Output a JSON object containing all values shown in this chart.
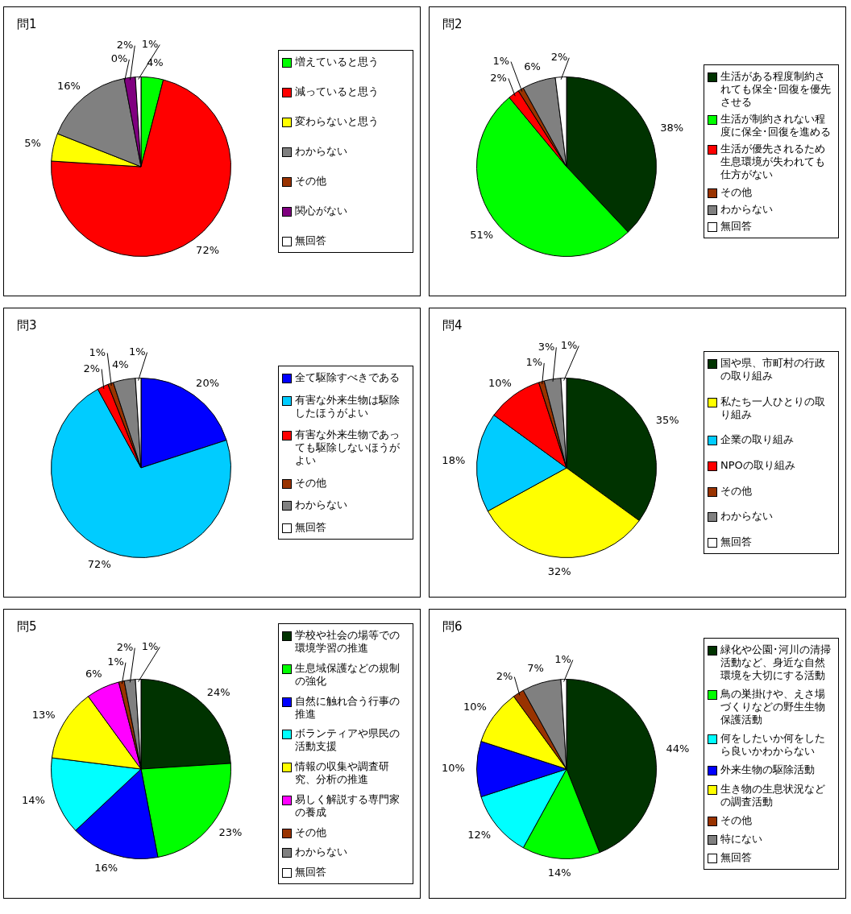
{
  "chart_data": [
    {
      "type": "pie",
      "title": "問1",
      "legend": "right",
      "categories": [
        "増えていると思う",
        "減っていると思う",
        "変わらないと思う",
        "わからない",
        "その他",
        "関心がない",
        "無回答"
      ],
      "values": [
        4,
        72,
        5,
        16,
        0,
        2,
        1
      ],
      "value_labels": [
        "4%",
        "72%",
        "5%",
        "16%",
        "0%",
        "2%",
        "1%"
      ],
      "colors": [
        "#00ff00",
        "#ff0000",
        "#ffff00",
        "#808080",
        "#993300",
        "#800080",
        "#ffffff"
      ]
    },
    {
      "type": "pie",
      "title": "問2",
      "legend": "right",
      "categories": [
        "生活がある程度制約されても保全･回復を優先させる",
        "生活が制約されない程度に保全･回復を進める",
        "生活が優先されるため生息環境が失われても仕方がない",
        "その他",
        "わからない",
        "無回答"
      ],
      "values": [
        38,
        51,
        2,
        1,
        6,
        2
      ],
      "value_labels": [
        "38%",
        "51%",
        "2%",
        "1%",
        "6%",
        "2%"
      ],
      "colors": [
        "#003300",
        "#00ff00",
        "#ff0000",
        "#993300",
        "#808080",
        "#ffffff"
      ]
    },
    {
      "type": "pie",
      "title": "問3",
      "legend": "right",
      "categories": [
        "全て駆除すべきである",
        "有害な外来生物は駆除したほうがよい",
        "有害な外来生物であっても駆除しないほうがよい",
        "その他",
        "わからない",
        "無回答"
      ],
      "values": [
        20,
        72,
        2,
        1,
        4,
        1
      ],
      "value_labels": [
        "20%",
        "72%",
        "2%",
        "1%",
        "4%",
        "1%"
      ],
      "colors": [
        "#0000ff",
        "#00ccff",
        "#ff0000",
        "#993300",
        "#808080",
        "#ffffff"
      ]
    },
    {
      "type": "pie",
      "title": "問4",
      "legend": "right",
      "categories": [
        "国や県、市町村の行政の取り組み",
        "私たち一人ひとりの取り組み",
        "企業の取り組み",
        "NPOの取り組み",
        "その他",
        "わからない",
        "無回答"
      ],
      "values": [
        35,
        32,
        18,
        10,
        1,
        3,
        1
      ],
      "value_labels": [
        "35%",
        "32%",
        "18%",
        "10%",
        "1%",
        "3%",
        "1%"
      ],
      "colors": [
        "#003300",
        "#ffff00",
        "#00ccff",
        "#ff0000",
        "#993300",
        "#808080",
        "#ffffff"
      ]
    },
    {
      "type": "pie",
      "title": "問5",
      "legend": "right",
      "categories": [
        "学校や社会の場等での環境学習の推進",
        "生息域保護などの規制の強化",
        "自然に触れ合う行事の推進",
        "ボランティアや県民の活動支援",
        "情報の収集や調査研究、分析の推進",
        "易しく解説する専門家の養成",
        "その他",
        "わからない",
        "無回答"
      ],
      "values": [
        24,
        23,
        16,
        14,
        13,
        6,
        1,
        2,
        1
      ],
      "value_labels": [
        "24%",
        "23%",
        "16%",
        "14%",
        "13%",
        "6%",
        "1%",
        "2%",
        "1%"
      ],
      "colors": [
        "#003300",
        "#00ff00",
        "#0000ff",
        "#00ffff",
        "#ffff00",
        "#ff00ff",
        "#993300",
        "#808080",
        "#ffffff"
      ]
    },
    {
      "type": "pie",
      "title": "問6",
      "legend": "right",
      "categories": [
        "緑化や公園･河川の清掃活動など、身近な自然環境を大切にする活動",
        "鳥の巣掛けや、えさ場づくりなどの野生生物保護活動",
        "何をしたいか何をしたら良いかわからない",
        "外来生物の駆除活動",
        "生き物の生息状況などの調査活動",
        "その他",
        "特にない",
        "無回答"
      ],
      "values": [
        44,
        14,
        12,
        10,
        10,
        2,
        7,
        1
      ],
      "value_labels": [
        "44%",
        "14%",
        "12%",
        "10%",
        "10%",
        "2%",
        "7%",
        "1%"
      ],
      "colors": [
        "#003300",
        "#00ff00",
        "#00ffff",
        "#0000ff",
        "#ffff00",
        "#993300",
        "#808080",
        "#ffffff"
      ]
    }
  ]
}
